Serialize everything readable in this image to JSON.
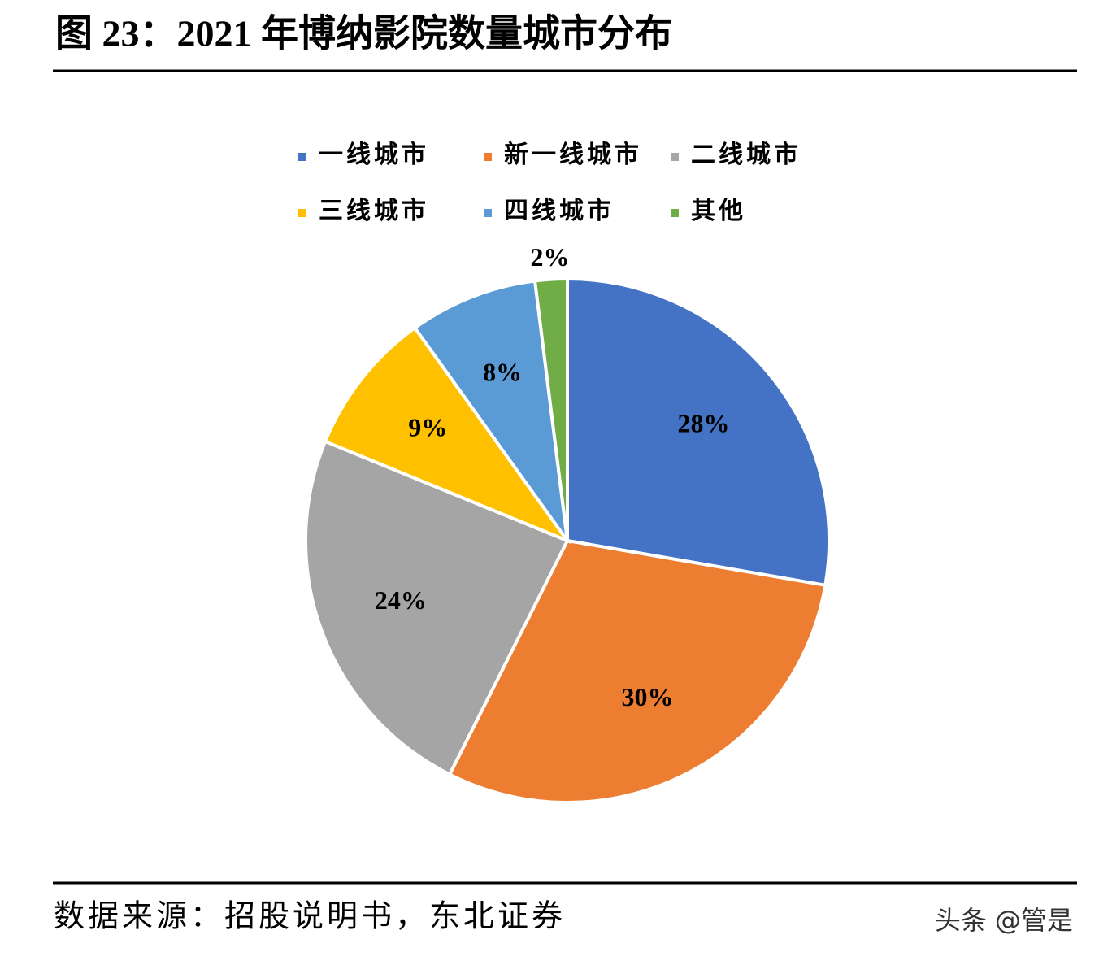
{
  "chart_data": {
    "type": "pie",
    "title": "图 23：2021 年博纳影院数量城市分布",
    "categories": [
      "一线城市",
      "新一线城市",
      "二线城市",
      "三线城市",
      "四线城市",
      "其他"
    ],
    "values": [
      28,
      30,
      24,
      9,
      8,
      2
    ],
    "value_labels": [
      "28%",
      "30%",
      "24%",
      "9%",
      "8%",
      "2%"
    ],
    "colors": [
      "#4472c4",
      "#ed7d31",
      "#a5a5a5",
      "#ffc000",
      "#5b9bd5",
      "#70ad47"
    ],
    "source": "数据来源：招股说明书，东北证券",
    "watermark": "头条 @管是"
  }
}
